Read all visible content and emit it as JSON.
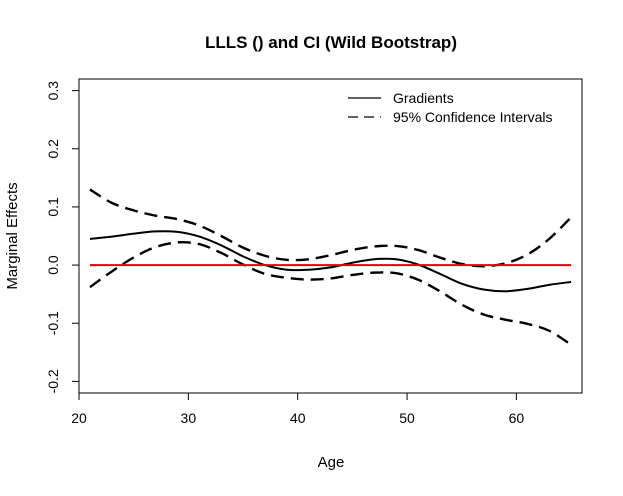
{
  "chart_data": {
    "type": "line",
    "title": "LLLS () and CI (Wild Bootstrap)",
    "xlabel": "Age",
    "ylabel": "Marginal Effects",
    "xlim": [
      20,
      66
    ],
    "ylim": [
      -0.22,
      0.32
    ],
    "x_ticks": [
      "20",
      "30",
      "40",
      "50",
      "60"
    ],
    "y_ticks": [
      "-0.2",
      "-0.1",
      "0.0",
      "0.1",
      "0.2",
      "0.3"
    ],
    "legend_position": "top-right",
    "series": [
      {
        "name": "Gradients",
        "style": "solid",
        "color": "#000000",
        "x": [
          21,
          23,
          25,
          27,
          29,
          31,
          33,
          35,
          37,
          39,
          41,
          43,
          45,
          47,
          49,
          51,
          53,
          55,
          57,
          59,
          61,
          63,
          65
        ],
        "values": [
          0.045,
          0.049,
          0.054,
          0.058,
          0.057,
          0.049,
          0.034,
          0.015,
          0.0,
          -0.008,
          -0.008,
          -0.004,
          0.004,
          0.01,
          0.01,
          0.001,
          -0.015,
          -0.032,
          -0.042,
          -0.045,
          -0.041,
          -0.034,
          -0.029
        ]
      },
      {
        "name": "95% Confidence Intervals",
        "style": "dashed",
        "color": "#000000",
        "x": [
          21,
          23,
          25,
          27,
          29,
          31,
          33,
          35,
          37,
          39,
          41,
          43,
          45,
          47,
          49,
          51,
          53,
          55,
          57,
          59,
          61,
          63,
          65
        ],
        "values": [
          0.13,
          0.107,
          0.094,
          0.085,
          0.079,
          0.068,
          0.05,
          0.03,
          0.016,
          0.009,
          0.01,
          0.017,
          0.026,
          0.032,
          0.033,
          0.026,
          0.013,
          0.002,
          -0.002,
          0.003,
          0.018,
          0.045,
          0.082
        ]
      },
      {
        "style": "dashed",
        "color": "#000000",
        "x": [
          21,
          23,
          25,
          27,
          29,
          31,
          33,
          35,
          37,
          39,
          41,
          43,
          45,
          47,
          49,
          51,
          53,
          55,
          57,
          59,
          61,
          63,
          65
        ],
        "values": [
          -0.038,
          -0.011,
          0.013,
          0.031,
          0.039,
          0.036,
          0.021,
          0.001,
          -0.015,
          -0.022,
          -0.025,
          -0.023,
          -0.017,
          -0.013,
          -0.014,
          -0.025,
          -0.045,
          -0.068,
          -0.085,
          -0.094,
          -0.101,
          -0.113,
          -0.137
        ]
      },
      {
        "style": "solid",
        "color": "#e0000d",
        "x": [
          21,
          65
        ],
        "values": [
          0,
          0
        ]
      }
    ],
    "legend": [
      {
        "label": "Gradients",
        "style": "solid"
      },
      {
        "label": "95% Confidence Intervals",
        "style": "dashed"
      }
    ]
  }
}
